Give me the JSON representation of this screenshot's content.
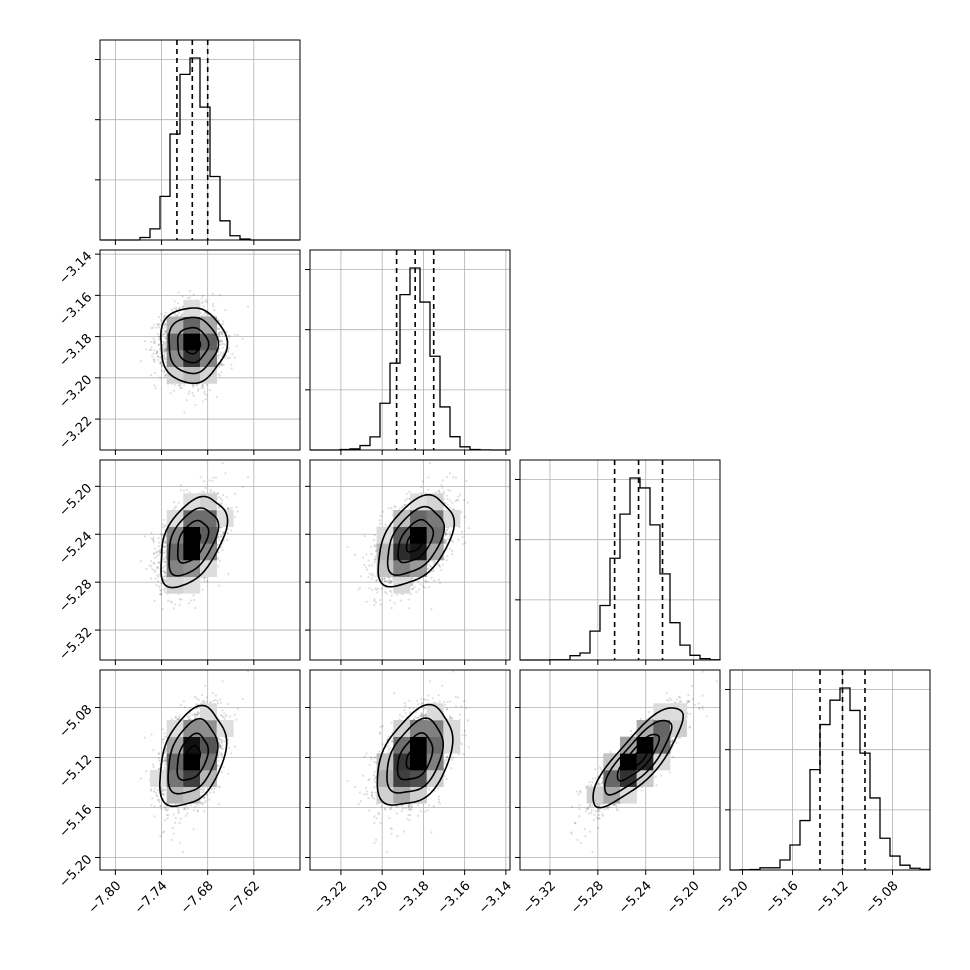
{
  "chart_data": {
    "type": "corner",
    "parameters": [
      {
        "range": [
          -7.82,
          -7.56
        ],
        "ticks": [
          -7.8,
          -7.74,
          -7.68,
          -7.62
        ],
        "tick_labels": [
          "−7.80",
          "−7.74",
          "−7.68",
          "−7.62"
        ],
        "mean": -7.7,
        "sd": 0.02,
        "quantiles": [
          -7.72,
          -7.7,
          -7.68
        ]
      },
      {
        "range": [
          -3.235,
          -3.138
        ],
        "ticks": [
          -3.22,
          -3.2,
          -3.18,
          -3.16,
          -3.14
        ],
        "tick_labels": [
          "−3.22",
          "−3.20",
          "−3.18",
          "−3.16",
          "−3.14"
        ],
        "mean": -3.184,
        "sd": 0.0085,
        "quantiles": [
          -3.193,
          -3.184,
          -3.175
        ]
      },
      {
        "range": [
          -5.345,
          -5.178
        ],
        "ticks": [
          -5.32,
          -5.28,
          -5.24,
          -5.2
        ],
        "tick_labels": [
          "−5.32",
          "−5.28",
          "−5.24",
          "−5.20"
        ],
        "mean": -5.246,
        "sd": 0.0175,
        "quantiles": [
          -5.266,
          -5.246,
          -5.226
        ]
      },
      {
        "range": [
          -5.21,
          -5.05
        ],
        "ticks": [
          -5.2,
          -5.16,
          -5.12,
          -5.08
        ],
        "tick_labels": [
          "−5.20",
          "−5.16",
          "−5.12",
          "−5.08"
        ],
        "mean": -5.12,
        "sd": 0.0185,
        "quantiles": [
          -5.138,
          -5.12,
          -5.102
        ]
      }
    ],
    "y_tick_labels": [
      null,
      {
        "ticks": [
          -3.14,
          -3.16,
          -3.18,
          -3.2,
          -3.22
        ],
        "tick_labels": [
          "−3.14",
          "−3.16",
          "−3.18",
          "−3.20",
          "−3.22"
        ]
      },
      {
        "ticks": [
          -5.2,
          -5.24,
          -5.28,
          -5.32
        ],
        "tick_labels": [
          "−5.20",
          "−5.24",
          "−5.28",
          "−5.32"
        ]
      },
      {
        "ticks": [
          -5.08,
          -5.12,
          -5.16,
          -5.2
        ],
        "tick_labels": [
          "−5.08",
          "−5.12",
          "−5.16",
          "−5.20"
        ]
      }
    ],
    "correlations": [
      [
        1,
        0.0,
        0.45,
        0.35
      ],
      [
        0.0,
        1,
        0.45,
        0.4
      ],
      [
        0.45,
        0.45,
        1,
        0.82
      ],
      [
        0.35,
        0.4,
        0.82,
        1
      ]
    ],
    "grid": true,
    "title": "",
    "xlabel": "",
    "ylabel": ""
  },
  "colors": {
    "line": "#000000",
    "points": "#000000",
    "grid": "#b0b0b0"
  }
}
